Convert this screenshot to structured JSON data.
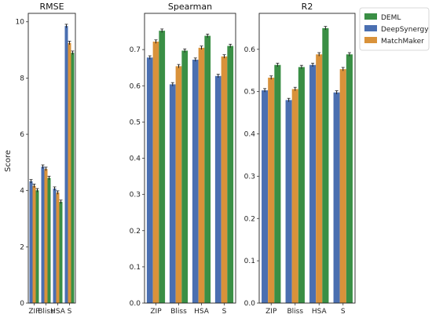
{
  "chart_data": {
    "type": "bar",
    "ylabel": "Score",
    "categories": [
      "ZIP",
      "Bliss",
      "HSA",
      "S"
    ],
    "legend": {
      "placement": "right",
      "entries": [
        "DEML",
        "DeepSynergy",
        "MatchMaker"
      ]
    },
    "series_colors": {
      "DeepSynergy": "#4a6fb1",
      "MatchMaker": "#d9923a",
      "DEML": "#3a8f45"
    },
    "bar_order": [
      "DeepSynergy",
      "MatchMaker",
      "DEML"
    ],
    "panels": [
      {
        "title": "RMSE",
        "ylim": [
          0,
          10.3
        ],
        "yticks": [
          0,
          2,
          4,
          6,
          8,
          10
        ],
        "series": [
          {
            "name": "DeepSynergy",
            "values": [
              4.33,
              4.85,
              4.07,
              9.85
            ]
          },
          {
            "name": "MatchMaker",
            "values": [
              4.17,
              4.77,
              3.93,
              9.25
            ]
          },
          {
            "name": "DEML",
            "values": [
              4.01,
              4.45,
              3.6,
              8.9
            ]
          }
        ]
      },
      {
        "title": "Spearman",
        "ylim": [
          0,
          0.8
        ],
        "yticks": [
          0.0,
          0.1,
          0.2,
          0.3,
          0.4,
          0.5,
          0.6,
          0.7
        ],
        "series": [
          {
            "name": "DeepSynergy",
            "values": [
              0.678,
              0.604,
              0.672,
              0.627
            ]
          },
          {
            "name": "MatchMaker",
            "values": [
              0.722,
              0.654,
              0.705,
              0.681
            ]
          },
          {
            "name": "DEML",
            "values": [
              0.752,
              0.697,
              0.738,
              0.71
            ]
          }
        ]
      },
      {
        "title": "R2",
        "ylim": [
          0,
          0.685
        ],
        "yticks": [
          0.0,
          0.1,
          0.2,
          0.3,
          0.4,
          0.5,
          0.6
        ],
        "series": [
          {
            "name": "DeepSynergy",
            "values": [
              0.503,
              0.48,
              0.563,
              0.498
            ]
          },
          {
            "name": "MatchMaker",
            "values": [
              0.533,
              0.506,
              0.588,
              0.553
            ]
          },
          {
            "name": "DEML",
            "values": [
              0.563,
              0.558,
              0.65,
              0.588
            ]
          }
        ]
      }
    ]
  }
}
